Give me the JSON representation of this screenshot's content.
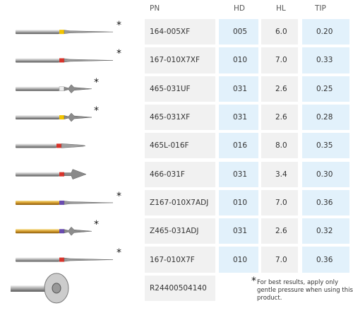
{
  "table": {
    "header": [
      "PN",
      "HD",
      "HL",
      "TIP"
    ],
    "rows": [
      {
        "mark": "*",
        "cells": [
          "164-005XF",
          "005",
          "6.0",
          "0.20"
        ]
      },
      {
        "mark": "*",
        "cells": [
          "167-010X7XF",
          "010",
          "7.0",
          "0.33"
        ]
      },
      {
        "mark": "*",
        "cells": [
          "465-031UF",
          "031",
          "2.6",
          "0.25"
        ]
      },
      {
        "mark": "*",
        "cells": [
          "465-031XF",
          "031",
          "2.6",
          "0.28"
        ]
      },
      {
        "cells": [
          "465L-016F",
          "016",
          "8.0",
          "0.35"
        ]
      },
      {
        "cells": [
          "466-031F",
          "031",
          "3.4",
          "0.30"
        ]
      },
      {
        "mark": "*",
        "cells": [
          "Z167-010X7ADJ",
          "010",
          "7.0",
          "0.36"
        ]
      },
      {
        "mark": "*",
        "cells": [
          "Z465-031ADJ",
          "031",
          "2.6",
          "0.32"
        ]
      },
      {
        "mark": "*",
        "cells": [
          "167-010X7F",
          "010",
          "7.0",
          "0.36"
        ]
      },
      {
        "cells": [
          "R24400504140"
        ]
      }
    ],
    "note": {
      "mark": "*",
      "text": "For best results, apply only gentle pressure when using this product."
    }
  }
}
